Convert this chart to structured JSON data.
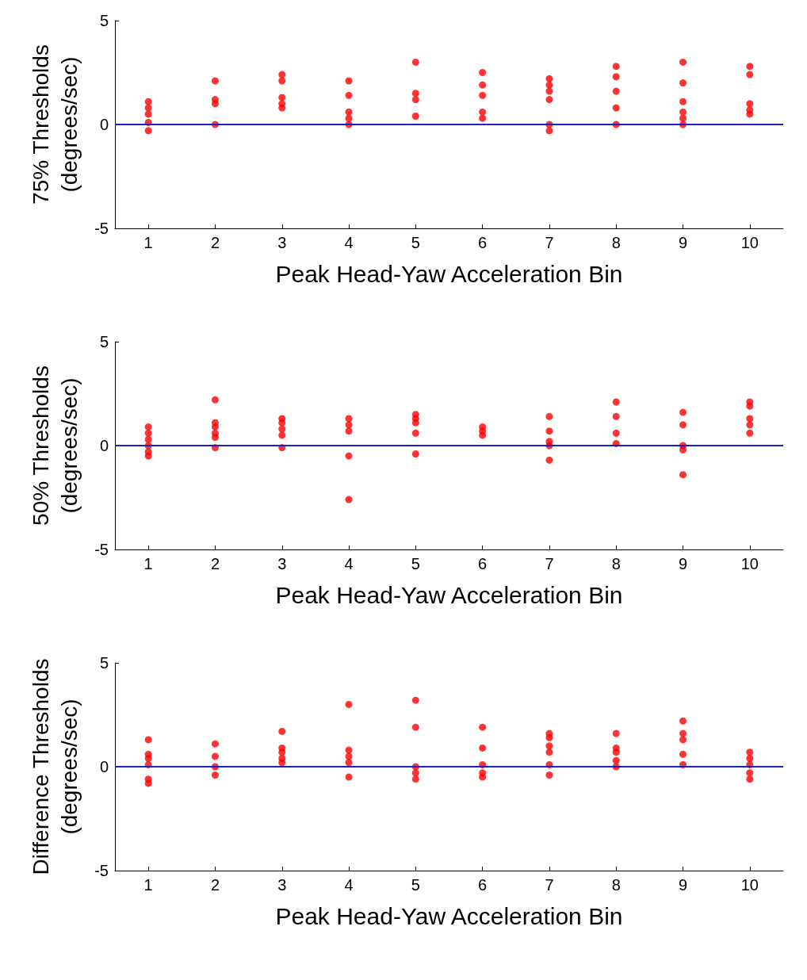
{
  "chart_data": [
    {
      "type": "scatter",
      "xlabel": "Peak Head-Yaw Acceleration Bin",
      "ylabel": "75% Thresholds\n(degrees/sec)",
      "xlim": [
        0.5,
        10.5
      ],
      "xticks": [
        1,
        2,
        3,
        4,
        5,
        6,
        7,
        8,
        9,
        10
      ],
      "ylim": [
        -5,
        5
      ],
      "yticks": [
        -5,
        0,
        5
      ],
      "grid": false,
      "marker": "circle",
      "ref_lines": [
        {
          "axis": "y",
          "value": 0,
          "color": "#2020c0"
        }
      ],
      "series": [
        {
          "color": "#ff0000",
          "x": [
            1,
            1,
            1,
            1,
            1,
            2,
            2,
            2,
            2,
            3,
            3,
            3,
            3,
            3,
            4,
            4,
            4,
            4,
            4,
            5,
            5,
            5,
            5,
            6,
            6,
            6,
            6,
            6,
            7,
            7,
            7,
            7,
            7,
            7,
            8,
            8,
            8,
            8,
            8,
            9,
            9,
            9,
            9,
            9,
            9,
            10,
            10,
            10,
            10,
            10
          ],
          "values": [
            1.1,
            0.8,
            0.5,
            0.1,
            -0.3,
            2.1,
            1.2,
            1.0,
            0.0,
            2.4,
            2.1,
            1.3,
            1.0,
            0.8,
            2.1,
            1.4,
            0.6,
            0.3,
            0.0,
            3.0,
            1.5,
            1.2,
            0.4,
            2.5,
            1.9,
            1.4,
            0.6,
            0.3,
            2.2,
            1.9,
            1.6,
            1.2,
            0.0,
            -0.3,
            2.8,
            2.3,
            1.6,
            0.8,
            0.0,
            3.0,
            2.0,
            1.1,
            0.6,
            0.3,
            0.0,
            2.8,
            2.4,
            1.0,
            0.7,
            0.5
          ]
        }
      ]
    },
    {
      "type": "scatter",
      "xlabel": "Peak Head-Yaw Acceleration Bin",
      "ylabel": "50% Thresholds\n(degrees/sec)",
      "xlim": [
        0.5,
        10.5
      ],
      "xticks": [
        1,
        2,
        3,
        4,
        5,
        6,
        7,
        8,
        9,
        10
      ],
      "ylim": [
        -5,
        5
      ],
      "yticks": [
        -5,
        0,
        5
      ],
      "grid": false,
      "marker": "circle",
      "ref_lines": [
        {
          "axis": "y",
          "value": 0,
          "color": "#2020c0"
        }
      ],
      "series": [
        {
          "color": "#ff0000",
          "x": [
            1,
            1,
            1,
            1,
            1,
            1,
            2,
            2,
            2,
            2,
            2,
            2,
            3,
            3,
            3,
            3,
            3,
            4,
            4,
            4,
            4,
            4,
            5,
            5,
            5,
            5,
            5,
            6,
            6,
            6,
            7,
            7,
            7,
            7,
            7,
            8,
            8,
            8,
            8,
            9,
            9,
            9,
            9,
            9,
            10,
            10,
            10,
            10,
            10
          ],
          "values": [
            0.9,
            0.6,
            0.3,
            0.0,
            -0.3,
            -0.5,
            2.2,
            1.1,
            0.9,
            0.6,
            0.4,
            -0.1,
            1.3,
            1.1,
            0.8,
            0.5,
            -0.1,
            1.3,
            1.0,
            0.7,
            -0.5,
            -2.6,
            1.5,
            1.3,
            1.1,
            0.6,
            -0.4,
            0.9,
            0.7,
            0.5,
            1.4,
            0.7,
            0.2,
            0.0,
            -0.7,
            2.1,
            1.4,
            0.6,
            0.1,
            1.6,
            1.0,
            0.0,
            -0.2,
            -1.4,
            2.1,
            1.9,
            1.3,
            1.0,
            0.6
          ]
        }
      ]
    },
    {
      "type": "scatter",
      "xlabel": "Peak Head-Yaw Acceleration Bin",
      "ylabel": "Difference Thresholds\n(degrees/sec)",
      "xlim": [
        0.5,
        10.5
      ],
      "xticks": [
        1,
        2,
        3,
        4,
        5,
        6,
        7,
        8,
        9,
        10
      ],
      "ylim": [
        -5,
        5
      ],
      "yticks": [
        -5,
        0,
        5
      ],
      "grid": false,
      "marker": "circle",
      "ref_lines": [
        {
          "axis": "y",
          "value": 0,
          "color": "#2020c0"
        }
      ],
      "series": [
        {
          "color": "#ff0000",
          "x": [
            1,
            1,
            1,
            1,
            1,
            1,
            2,
            2,
            2,
            2,
            3,
            3,
            3,
            3,
            3,
            4,
            4,
            4,
            4,
            4,
            5,
            5,
            5,
            5,
            5,
            6,
            6,
            6,
            6,
            6,
            7,
            7,
            7,
            7,
            7,
            7,
            8,
            8,
            8,
            8,
            8,
            9,
            9,
            9,
            9,
            9,
            10,
            10,
            10,
            10,
            10
          ],
          "values": [
            1.3,
            0.6,
            0.4,
            0.1,
            -0.6,
            -0.8,
            1.1,
            0.5,
            0.0,
            -0.4,
            1.7,
            0.9,
            0.7,
            0.4,
            0.2,
            3.0,
            0.8,
            0.5,
            0.2,
            -0.5,
            3.2,
            1.9,
            0.0,
            -0.3,
            -0.6,
            1.9,
            0.9,
            0.1,
            -0.3,
            -0.5,
            1.6,
            1.4,
            1.0,
            0.7,
            0.1,
            -0.4,
            1.6,
            0.9,
            0.7,
            0.3,
            0.0,
            2.2,
            1.6,
            1.3,
            0.6,
            0.1,
            0.7,
            0.4,
            0.1,
            -0.3,
            -0.6
          ]
        }
      ]
    }
  ]
}
